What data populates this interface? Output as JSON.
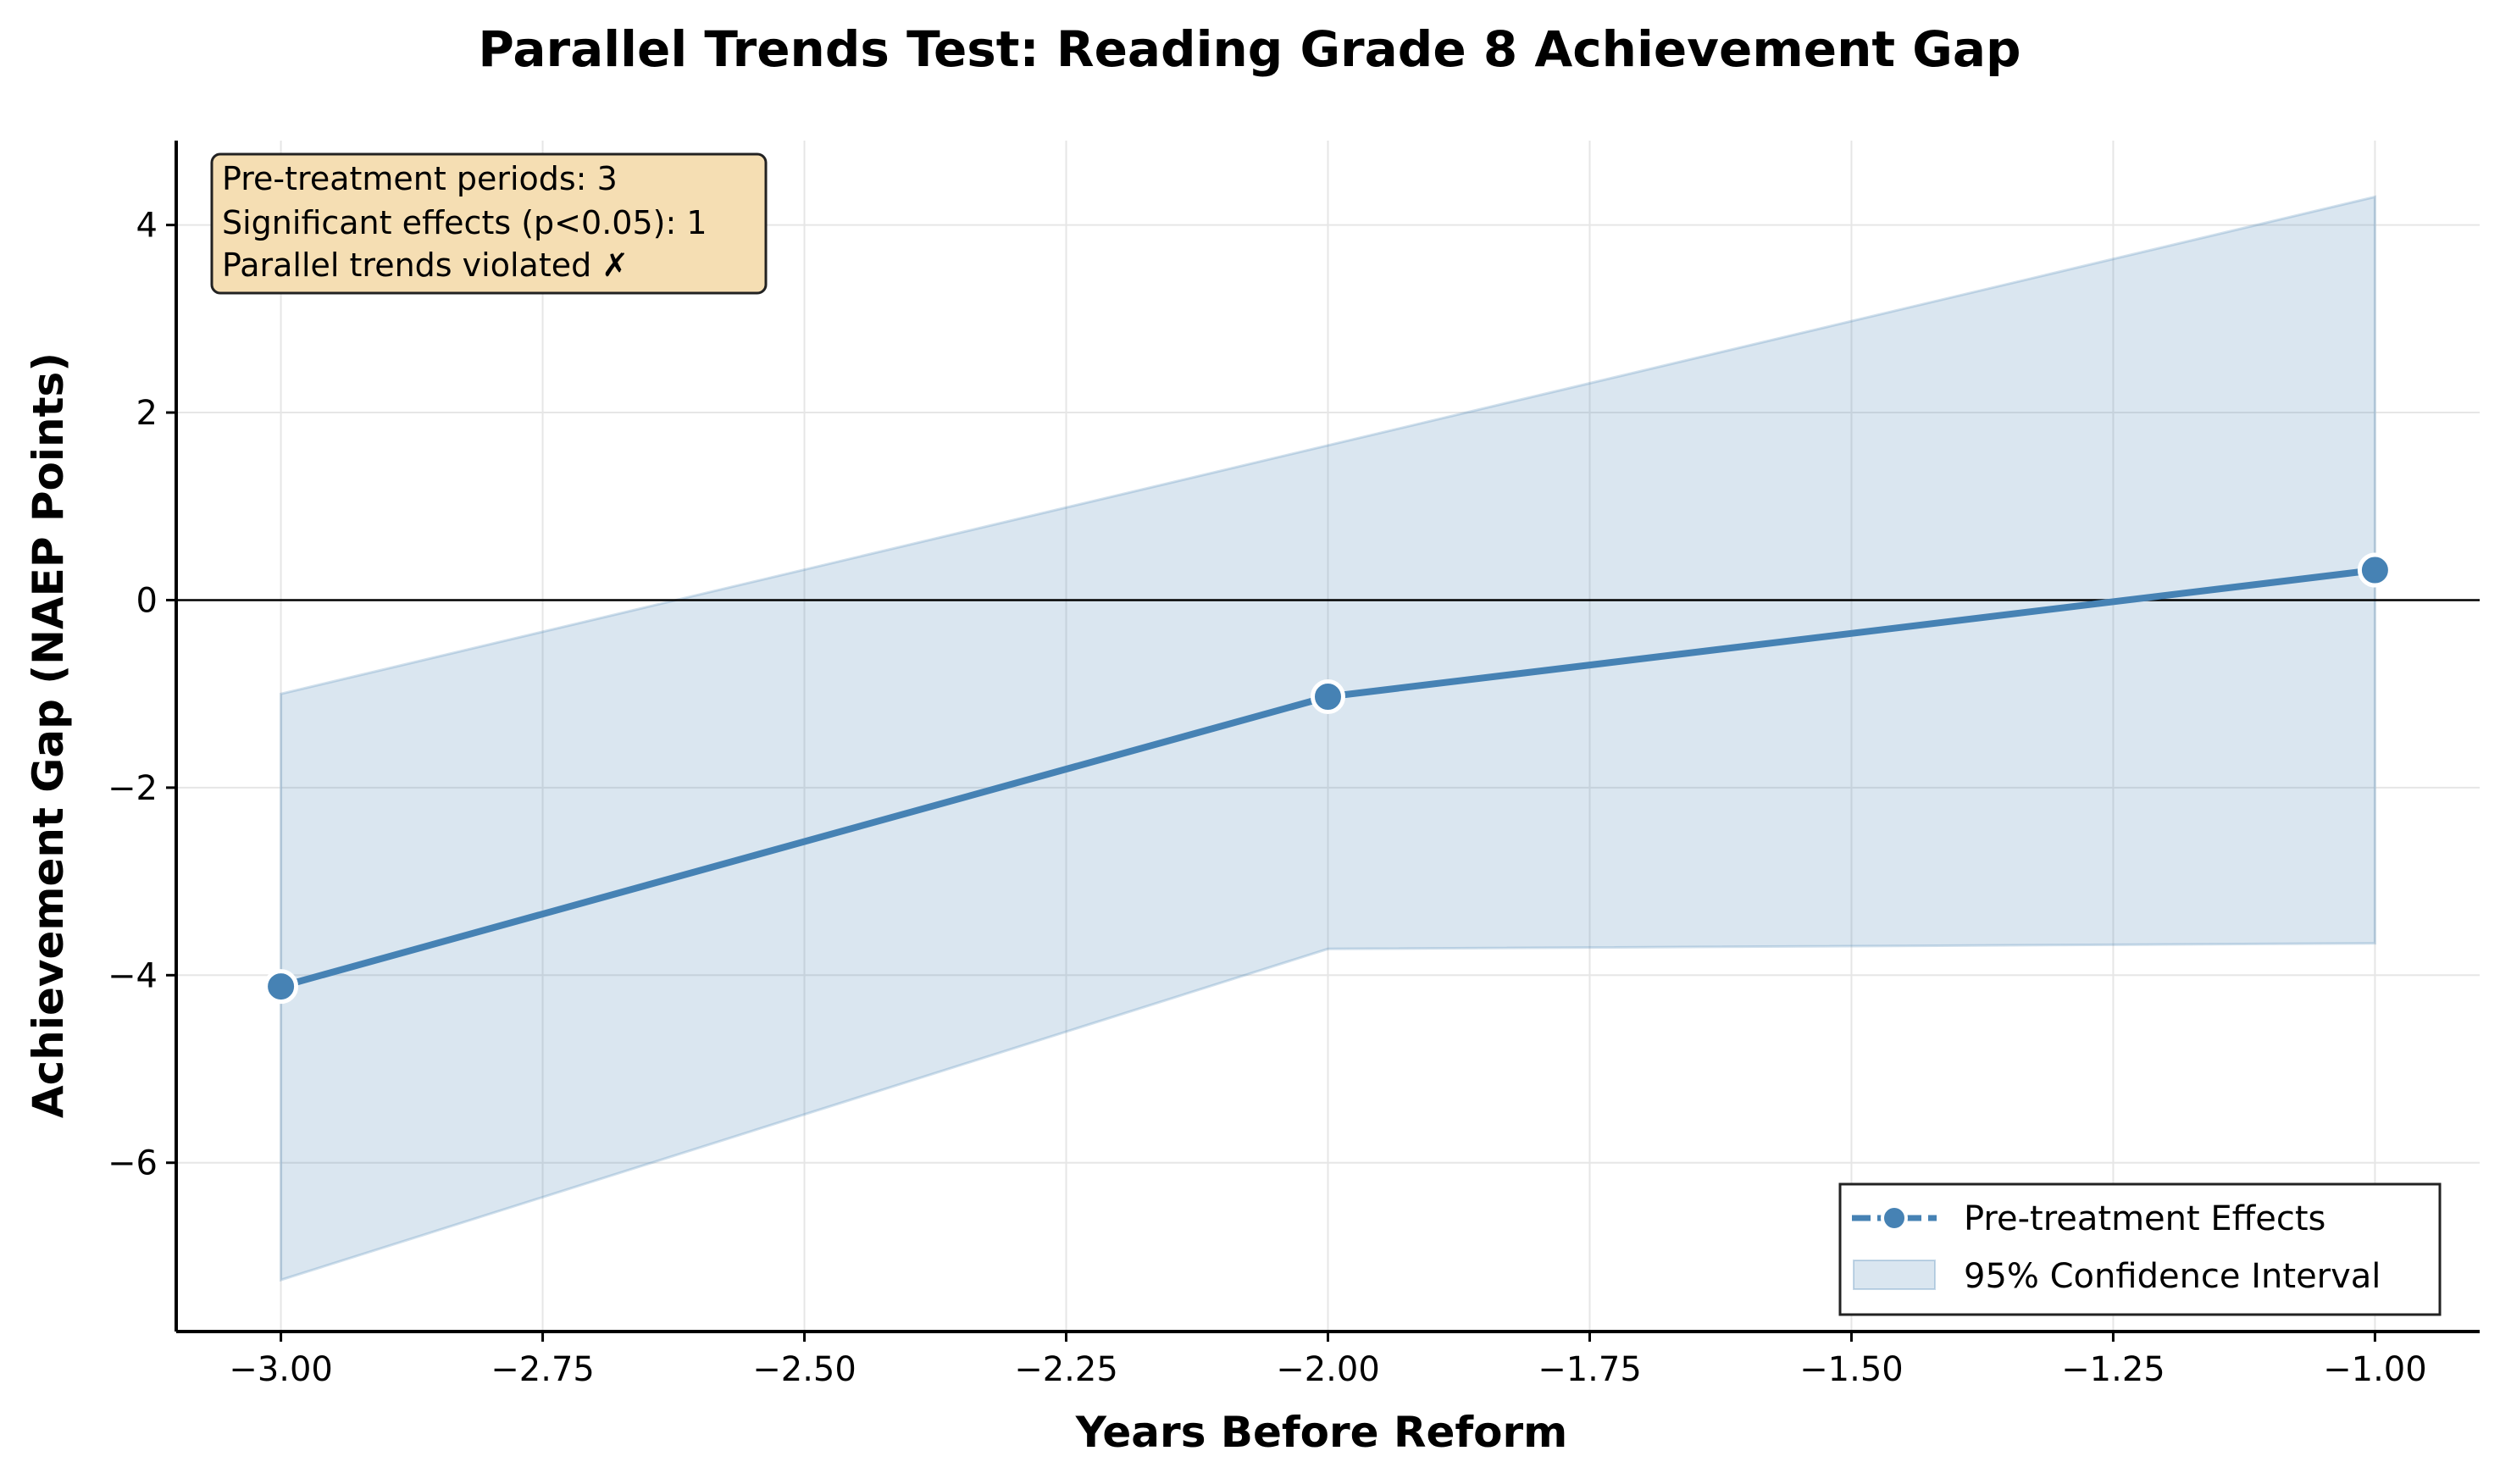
{
  "chart_data": {
    "type": "line",
    "title": "Parallel Trends Test: Reading Grade 8 Achievement Gap",
    "xlabel": "Years Before Reform",
    "ylabel": "Achievement Gap (NAEP Points)",
    "xlim": [
      -3.1,
      -0.9
    ],
    "ylim": [
      -7.8,
      4.9
    ],
    "x_ticks": [
      -3.0,
      -2.75,
      -2.5,
      -2.25,
      -2.0,
      -1.75,
      -1.5,
      -1.25,
      -1.0
    ],
    "x_tick_labels": [
      "−3.00",
      "−2.75",
      "−2.50",
      "−2.25",
      "−2.00",
      "−1.75",
      "−1.50",
      "−1.25",
      "−1.00"
    ],
    "y_ticks": [
      -6,
      -4,
      -2,
      0,
      2,
      4
    ],
    "y_tick_labels": [
      "−6",
      "−4",
      "−2",
      "0",
      "2",
      "4"
    ],
    "grid": true,
    "reference_line_y": 0,
    "series": [
      {
        "name": "Pre-treatment Effects",
        "x": [
          -3,
          -2,
          -1
        ],
        "y": [
          -4.12,
          -1.03,
          0.32
        ],
        "color": "#4682b4"
      }
    ],
    "confidence_band": {
      "name": "95% Confidence Interval",
      "x": [
        -3,
        -2,
        -1
      ],
      "lower": [
        -7.25,
        -3.72,
        -3.66
      ],
      "upper": [
        -1.0,
        1.65,
        4.3
      ],
      "color": "#4682b4"
    },
    "legend_position": "lower-right",
    "annotation": {
      "lines": [
        "Pre-treatment periods: 3",
        "Significant effects (p<0.05): 1",
        "Parallel trends violated ✗"
      ],
      "position": "top-left",
      "background": "#f5deb3"
    }
  }
}
